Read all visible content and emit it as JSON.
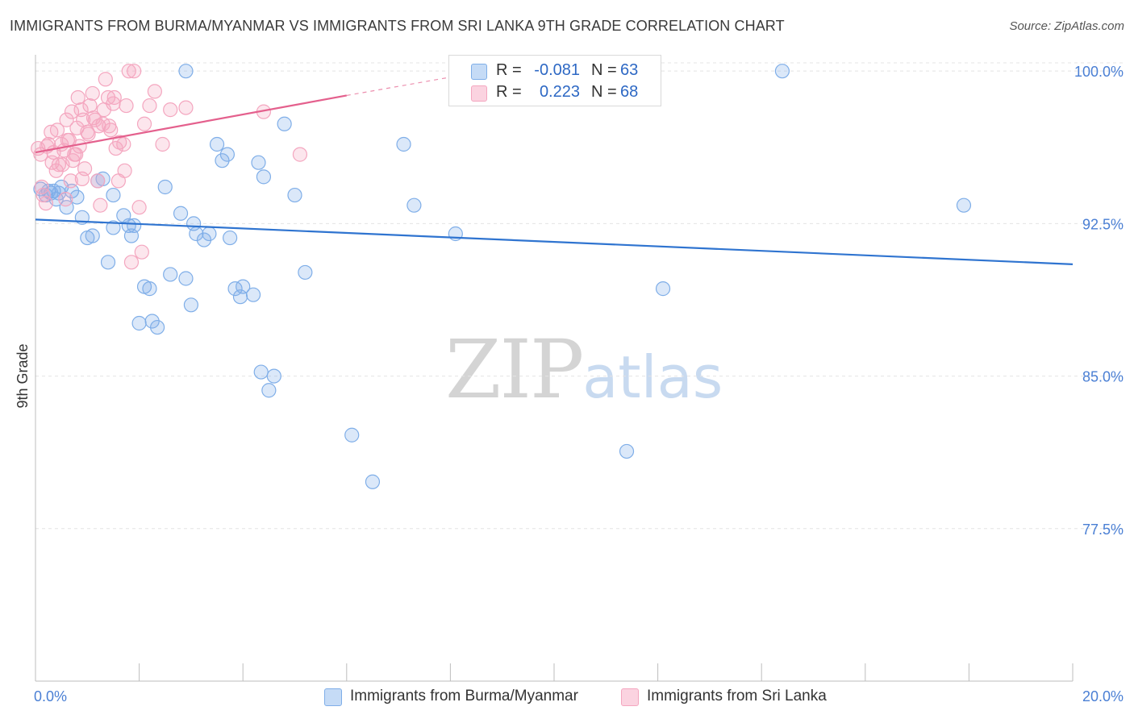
{
  "header": {
    "title": "IMMIGRANTS FROM BURMA/MYANMAR VS IMMIGRANTS FROM SRI LANKA 9TH GRADE CORRELATION CHART",
    "source": "Source: ZipAtlas.com"
  },
  "watermark": {
    "zip": "ZIP",
    "atlas": "atlas"
  },
  "legend": {
    "rows": [
      {
        "r_label": "R =",
        "r_value": "-0.081",
        "n_label": "N =",
        "n_value": "63",
        "color": "#7faee8"
      },
      {
        "r_label": "R =",
        "r_value": "0.223",
        "n_label": "N =",
        "n_value": "68",
        "color": "#f4a6bf"
      }
    ]
  },
  "bottom_legend": [
    {
      "label": "Immigrants from Burma/Myanmar",
      "color": "#7faee8"
    },
    {
      "label": "Immigrants from Sri Lanka",
      "color": "#f4a6bf"
    }
  ],
  "chart_data": {
    "type": "scatter",
    "title": "IMMIGRANTS FROM BURMA/MYANMAR VS IMMIGRANTS FROM SRI LANKA 9TH GRADE CORRELATION CHART",
    "xlabel": "",
    "ylabel": "9th Grade",
    "xlim": [
      0,
      20
    ],
    "ylim": [
      70,
      100.8
    ],
    "x_tick_labels": [
      "0.0%",
      "20.0%"
    ],
    "y_ticks": [
      77.5,
      85.0,
      92.5,
      100.0
    ],
    "y_tick_labels": [
      "77.5%",
      "85.0%",
      "92.5%",
      "100.0%"
    ],
    "grid": true,
    "series": [
      {
        "name": "Immigrants from Burma/Myanmar",
        "color": "#7faee8",
        "line_color": "#2f74d0",
        "trend": {
          "x": [
            0,
            20
          ],
          "y": [
            92.7,
            90.5
          ]
        },
        "points": [
          [
            0.1,
            94.2
          ],
          [
            0.2,
            93.9
          ],
          [
            0.3,
            94.0
          ],
          [
            0.35,
            94.1
          ],
          [
            0.5,
            94.3
          ],
          [
            0.4,
            93.7
          ],
          [
            0.6,
            93.3
          ],
          [
            0.7,
            94.1
          ],
          [
            0.8,
            93.8
          ],
          [
            0.9,
            92.8
          ],
          [
            1.0,
            91.8
          ],
          [
            1.1,
            91.9
          ],
          [
            1.2,
            94.6
          ],
          [
            1.3,
            94.7
          ],
          [
            1.4,
            90.6
          ],
          [
            1.5,
            92.3
          ],
          [
            1.5,
            93.9
          ],
          [
            1.7,
            92.9
          ],
          [
            1.8,
            92.4
          ],
          [
            1.85,
            91.9
          ],
          [
            1.9,
            92.4
          ],
          [
            2.0,
            87.6
          ],
          [
            2.1,
            89.4
          ],
          [
            2.2,
            89.3
          ],
          [
            2.25,
            87.7
          ],
          [
            2.35,
            87.4
          ],
          [
            2.5,
            94.3
          ],
          [
            2.6,
            90.0
          ],
          [
            2.8,
            93.0
          ],
          [
            2.9,
            89.8
          ],
          [
            3.0,
            88.5
          ],
          [
            3.05,
            92.5
          ],
          [
            3.1,
            92.0
          ],
          [
            3.25,
            91.7
          ],
          [
            3.35,
            92.0
          ],
          [
            3.5,
            96.4
          ],
          [
            3.6,
            95.6
          ],
          [
            3.7,
            95.9
          ],
          [
            3.75,
            91.8
          ],
          [
            3.85,
            89.3
          ],
          [
            3.95,
            88.9
          ],
          [
            4.0,
            89.4
          ],
          [
            4.2,
            89.0
          ],
          [
            4.3,
            95.5
          ],
          [
            4.35,
            85.2
          ],
          [
            4.4,
            94.8
          ],
          [
            4.5,
            84.3
          ],
          [
            4.6,
            85.0
          ],
          [
            4.8,
            97.4
          ],
          [
            5.0,
            93.9
          ],
          [
            5.2,
            90.1
          ],
          [
            6.1,
            82.1
          ],
          [
            6.5,
            79.8
          ],
          [
            7.1,
            96.4
          ],
          [
            7.3,
            93.4
          ],
          [
            8.1,
            92.0
          ],
          [
            11.4,
            81.3
          ],
          [
            12.1,
            89.3
          ],
          [
            14.4,
            100.0
          ],
          [
            17.9,
            93.4
          ],
          [
            2.9,
            100.0
          ],
          [
            0.25,
            94.1
          ],
          [
            0.45,
            94.0
          ]
        ]
      },
      {
        "name": "Immigrants from Sri Lanka",
        "color": "#f4a6bf",
        "line_color": "#e4608d",
        "trend": {
          "x": [
            0,
            6
          ],
          "y": [
            96.0,
            98.8
          ]
        },
        "trend_dashed": {
          "x": [
            6,
            10
          ],
          "y": [
            98.8,
            100.6
          ]
        },
        "points": [
          [
            0.05,
            96.2
          ],
          [
            0.1,
            95.9
          ],
          [
            0.15,
            93.9
          ],
          [
            0.2,
            93.5
          ],
          [
            0.25,
            96.4
          ],
          [
            0.3,
            97.0
          ],
          [
            0.35,
            96.0
          ],
          [
            0.4,
            95.1
          ],
          [
            0.45,
            95.4
          ],
          [
            0.5,
            96.4
          ],
          [
            0.55,
            96.1
          ],
          [
            0.6,
            97.6
          ],
          [
            0.65,
            96.6
          ],
          [
            0.7,
            98.0
          ],
          [
            0.75,
            95.9
          ],
          [
            0.8,
            97.2
          ],
          [
            0.85,
            96.3
          ],
          [
            0.9,
            94.7
          ],
          [
            0.95,
            95.2
          ],
          [
            1.0,
            97.0
          ],
          [
            1.05,
            98.3
          ],
          [
            1.1,
            98.9
          ],
          [
            1.15,
            97.6
          ],
          [
            1.2,
            94.6
          ],
          [
            1.25,
            93.4
          ],
          [
            1.3,
            97.4
          ],
          [
            1.35,
            99.6
          ],
          [
            1.4,
            98.7
          ],
          [
            1.45,
            97.1
          ],
          [
            1.5,
            98.4
          ],
          [
            1.55,
            96.2
          ],
          [
            1.6,
            94.6
          ],
          [
            1.7,
            96.4
          ],
          [
            1.75,
            98.3
          ],
          [
            1.8,
            100.0
          ],
          [
            1.85,
            90.6
          ],
          [
            1.9,
            100.0
          ],
          [
            2.0,
            93.3
          ],
          [
            2.05,
            91.1
          ],
          [
            2.1,
            97.4
          ],
          [
            2.2,
            98.3
          ],
          [
            2.3,
            99.0
          ],
          [
            2.45,
            96.4
          ],
          [
            2.6,
            98.1
          ],
          [
            2.9,
            98.2
          ],
          [
            4.4,
            98.0
          ],
          [
            5.1,
            95.9
          ],
          [
            0.12,
            94.3
          ],
          [
            0.22,
            96.3
          ],
          [
            0.32,
            95.5
          ],
          [
            0.42,
            97.1
          ],
          [
            0.52,
            95.4
          ],
          [
            0.62,
            96.6
          ],
          [
            0.72,
            95.6
          ],
          [
            0.82,
            98.7
          ],
          [
            0.92,
            97.6
          ],
          [
            1.02,
            96.9
          ],
          [
            1.12,
            97.7
          ],
          [
            1.22,
            97.3
          ],
          [
            1.32,
            98.1
          ],
          [
            1.42,
            97.3
          ],
          [
            1.52,
            98.7
          ],
          [
            0.58,
            93.7
          ],
          [
            0.68,
            94.6
          ],
          [
            0.78,
            95.9
          ],
          [
            0.88,
            98.1
          ],
          [
            1.62,
            96.5
          ],
          [
            1.72,
            95.1
          ]
        ]
      }
    ]
  }
}
